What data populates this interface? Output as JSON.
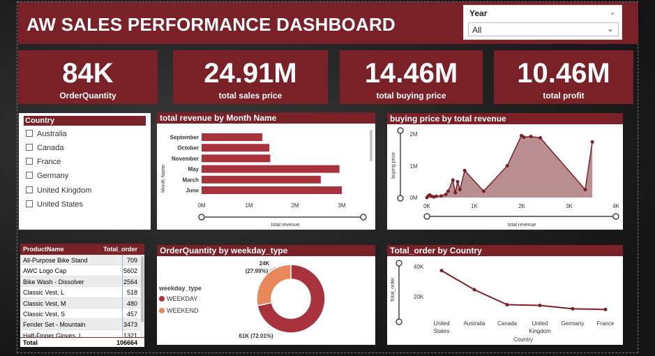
{
  "dashboard": {
    "title": "AW SALES PERFORMANCE DASHBOARD",
    "colors": {
      "accent": "#7a2127",
      "bar": "#a8333d",
      "area": "#b98f92",
      "weekend": "#e8875a"
    }
  },
  "year_slicer": {
    "label": "Year",
    "value": "All"
  },
  "kpis": [
    {
      "value": "84K",
      "caption": "OrderQuantity"
    },
    {
      "value": "24.91M",
      "caption": "total sales price"
    },
    {
      "value": "14.46M",
      "caption": "total buying price"
    },
    {
      "value": "10.46M",
      "caption": "total profit"
    }
  ],
  "country_slicer": {
    "header": "Country",
    "items": [
      "Australia",
      "Canada",
      "France",
      "Germany",
      "United Kingdom",
      "United States"
    ]
  },
  "revenue_by_month": {
    "title": "total revenue by Month Name",
    "ylabel": "Month Name",
    "xlabel": "total revenue",
    "ticks": [
      "0M",
      "1M",
      "2M",
      "3M"
    ]
  },
  "buying_vs_revenue": {
    "title": "buying price by total revenue",
    "ylabel": "buying price",
    "xlabel": "total revenue",
    "yticks": [
      "0M",
      "1M",
      "2M"
    ],
    "xticks": [
      "0K",
      "1K",
      "2K",
      "3K",
      "4K"
    ]
  },
  "orders_table": {
    "headers": [
      "ProductName",
      "Total_order"
    ],
    "rows": [
      [
        "All-Purpose Bike Stand",
        "709"
      ],
      [
        "AWC Logo Cap",
        "5602"
      ],
      [
        "Bike Wash - Dissolver",
        "2564"
      ],
      [
        "Classic Vest, L",
        "518"
      ],
      [
        "Classic Vest, M",
        "480"
      ],
      [
        "Classic Vest, S",
        "457"
      ],
      [
        "Fender Set - Mountain",
        "3473"
      ],
      [
        "Half-Finger Gloves, L",
        "1321"
      ]
    ],
    "total_label": "Total",
    "total_value": "106664"
  },
  "weekday_donut": {
    "title": "OrderQuantity by weekday_type",
    "legend_title": "weekday_type",
    "label_weekend": "24K",
    "label_weekend_pct": "(27.99%)",
    "label_weekday": "61K (72.01%)"
  },
  "orders_by_country": {
    "title": "Total_order by Country",
    "ylabel": "Total_order",
    "xlabel": "Country",
    "yticks": [
      "40K",
      "20K"
    ]
  },
  "chart_data": [
    {
      "type": "bar",
      "title": "total revenue by Month Name",
      "xlabel": "total revenue",
      "ylabel": "Month Name",
      "orientation": "horizontal",
      "categories": [
        "September",
        "October",
        "November",
        "May",
        "March",
        "June"
      ],
      "values": [
        1.3,
        1.45,
        1.47,
        2.95,
        2.55,
        3.0
      ],
      "xlim": [
        0,
        3.1
      ],
      "unit": "M"
    },
    {
      "type": "area",
      "title": "buying price by total revenue",
      "xlabel": "total revenue",
      "ylabel": "buying price",
      "x": [
        0,
        30,
        60,
        100,
        150,
        200,
        300,
        400,
        450,
        550,
        600,
        650,
        700,
        800,
        1200,
        1700,
        2000,
        2050,
        2200,
        2400,
        3350,
        3500
      ],
      "y": [
        0.0,
        0.05,
        0.08,
        0.04,
        0.02,
        0.04,
        0.05,
        0.1,
        0.2,
        0.55,
        0.15,
        0.5,
        0.25,
        0.85,
        0.2,
        1.0,
        1.95,
        1.9,
        1.92,
        1.88,
        0.25,
        1.75
      ],
      "xlim": [
        0,
        4000
      ],
      "ylim": [
        0,
        2.2
      ],
      "yunit": "M"
    },
    {
      "type": "pie",
      "title": "OrderQuantity by weekday_type",
      "categories": [
        "WEEKDAY",
        "WEEKEND"
      ],
      "values": [
        61,
        24
      ],
      "percents": [
        72.01,
        27.99
      ]
    },
    {
      "type": "line",
      "title": "Total_order by Country",
      "xlabel": "Country",
      "ylabel": "Total_order",
      "categories": [
        "United States",
        "Australia",
        "Canada",
        "United Kingdom",
        "Germany",
        "France"
      ],
      "values": [
        37500,
        23500,
        12500,
        12000,
        9500,
        9000
      ],
      "ylim": [
        0,
        45000
      ]
    }
  ]
}
